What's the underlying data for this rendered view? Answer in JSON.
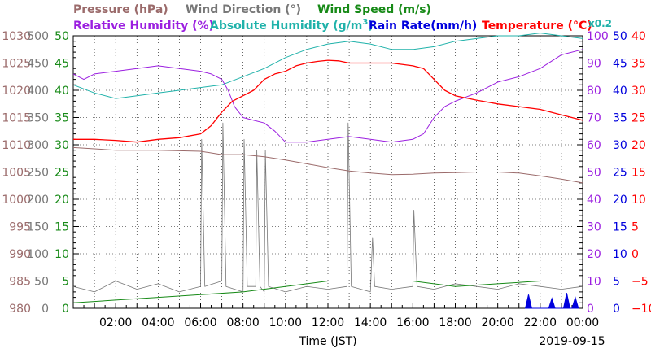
{
  "chart_data": {
    "type": "line",
    "legend_row1": {
      "pressure": "Pressure (hPa)",
      "wind_direction": "Wind Direction (°)",
      "wind_speed": "Wind Speed (m/s)"
    },
    "legend_row2": {
      "relative_humidity": "Relative Humidity (%)",
      "absolute_humidity": "Absolute Humidity (g/m",
      "absolute_humidity_sup": "3",
      "absolute_humidity_close": ")",
      "rain_rate": "Rain Rate(mm/h)",
      "temperature": "Temperature (°C)",
      "scale_note": "x0.2"
    },
    "xlabel": "Time (JST)",
    "date": "2019-09-15",
    "x_ticks": [
      "02:00",
      "04:00",
      "06:00",
      "08:00",
      "10:00",
      "12:00",
      "14:00",
      "16:00",
      "18:00",
      "20:00",
      "22:00",
      "00:00"
    ],
    "x_tick_hours": [
      2,
      4,
      6,
      8,
      10,
      12,
      14,
      16,
      18,
      20,
      22,
      24
    ],
    "xlim": [
      0,
      24
    ],
    "grid": true,
    "colors": {
      "pressure": "#9b6b6b",
      "wind_direction": "#777777",
      "wind_speed": "#178a17",
      "relative_humidity": "#9b1fe0",
      "absolute_humidity": "#20b2aa",
      "rain_rate": "#0000dd",
      "temperature": "#ff0000"
    },
    "axes": {
      "pressure": {
        "ylim": [
          980,
          1030
        ],
        "ticks": [
          "980",
          "985",
          "990",
          "995",
          "1000",
          "1005",
          "1010",
          "1015",
          "1020",
          "1025",
          "1030"
        ]
      },
      "wind_direction": {
        "ylim": [
          0,
          500
        ],
        "ticks": [
          "0",
          "50",
          "100",
          "150",
          "200",
          "250",
          "300",
          "350",
          "400",
          "450",
          "500"
        ]
      },
      "wind_speed": {
        "ylim": [
          0,
          50
        ],
        "ticks": [
          "0",
          "5",
          "10",
          "15",
          "20",
          "25",
          "30",
          "35",
          "40",
          "45",
          "50"
        ]
      },
      "relative_humidity": {
        "ylim": [
          0,
          100
        ],
        "ticks": [
          "0",
          "10",
          "20",
          "30",
          "40",
          "50",
          "60",
          "70",
          "80",
          "90",
          "100"
        ]
      },
      "rain_rate": {
        "ylim": [
          0,
          50
        ],
        "ticks": [
          "0",
          "5",
          "10",
          "15",
          "20",
          "25",
          "30",
          "35",
          "40",
          "45",
          "50"
        ]
      },
      "temperature": {
        "ylim": [
          -10,
          40
        ],
        "ticks": [
          "−10",
          "−5",
          "0",
          "5",
          "10",
          "15",
          "20",
          "25",
          "30",
          "35",
          "40"
        ]
      }
    },
    "series": [
      {
        "name": "Temperature (°C)",
        "axis": "temperature",
        "x": [
          0,
          1,
          2,
          3,
          4,
          5,
          6,
          6.5,
          7,
          7.5,
          8,
          8.5,
          9,
          9.5,
          10,
          10.5,
          11,
          11.5,
          12,
          12.5,
          13,
          14,
          15,
          16,
          16.5,
          17,
          17.5,
          18,
          19,
          20,
          21,
          22,
          23,
          24
        ],
        "y": [
          21,
          21,
          20.8,
          20.5,
          21,
          21.3,
          22,
          23.5,
          26,
          28,
          29,
          30,
          32,
          33,
          33.5,
          34.5,
          35,
          35.3,
          35.5,
          35.4,
          35,
          35,
          35,
          34.5,
          34,
          32,
          30,
          29,
          28.2,
          27.5,
          27,
          26.5,
          25.5,
          24.5
        ]
      },
      {
        "name": "Pressure (hPa)",
        "axis": "pressure",
        "x": [
          0,
          2,
          4,
          6,
          7,
          8,
          9,
          10,
          11,
          12,
          13,
          14,
          15,
          16,
          17,
          18,
          19,
          20,
          21,
          22,
          23,
          24
        ],
        "y": [
          1009.5,
          1009,
          1009,
          1008.8,
          1008.2,
          1008.2,
          1007.8,
          1007.2,
          1006.5,
          1005.8,
          1005.2,
          1004.8,
          1004.5,
          1004.6,
          1004.8,
          1004.9,
          1005,
          1005,
          1004.8,
          1004.3,
          1003.7,
          1003
        ]
      },
      {
        "name": "Relative Humidity (%)",
        "axis": "relative_humidity",
        "x": [
          0,
          0.5,
          1,
          2,
          3,
          4,
          5,
          6,
          6.5,
          7,
          7.3,
          7.6,
          8,
          8.5,
          9,
          9.5,
          10,
          11,
          12,
          13,
          14,
          15,
          16,
          16.5,
          17,
          17.5,
          18,
          19,
          20,
          21,
          22,
          23,
          24
        ],
        "y": [
          86,
          84,
          86,
          87,
          88,
          89,
          88,
          87,
          86,
          84,
          80,
          74,
          70,
          69,
          68,
          65,
          61,
          61,
          62,
          63,
          62,
          61,
          62,
          64,
          70,
          74,
          76,
          79,
          83,
          85,
          88,
          93,
          95
        ]
      },
      {
        "name": "Absolute Humidity (g/m3)",
        "axis": "wind_speed",
        "x": [
          0,
          1,
          2,
          3,
          4,
          5,
          6,
          7,
          8,
          9,
          10,
          11,
          12,
          13,
          14,
          15,
          16,
          17,
          18,
          19,
          20,
          21,
          22,
          23,
          24
        ],
        "y": [
          41,
          39.5,
          38.5,
          39,
          39.5,
          40,
          40.5,
          41,
          42.5,
          44,
          46,
          47.5,
          48.5,
          49,
          48.5,
          47.5,
          47.5,
          48,
          49,
          49.5,
          50,
          50,
          50.5,
          50,
          49.5
        ]
      },
      {
        "name": "Wind Speed (m/s)",
        "axis": "wind_speed",
        "x": [
          0,
          2,
          4,
          6,
          8,
          10,
          12,
          14,
          16,
          18,
          20,
          22,
          24
        ],
        "y": [
          1,
          1.5,
          2,
          2.5,
          3,
          4,
          5,
          5,
          5,
          4,
          4.5,
          5,
          5
        ]
      },
      {
        "name": "Wind Direction (°)",
        "axis": "wind_direction",
        "x": [
          0,
          1,
          2,
          3,
          4,
          5,
          6,
          6.05,
          6.2,
          7,
          7.05,
          7.2,
          8,
          8.05,
          8.2,
          8.6,
          8.65,
          8.8,
          9,
          9.05,
          9.2,
          10,
          11,
          12,
          12.9,
          12.95,
          13.1,
          14,
          14.1,
          14.2,
          15,
          16,
          16.05,
          16.2,
          17,
          18,
          19,
          20,
          21,
          22,
          23,
          24
        ],
        "y": [
          40,
          30,
          50,
          35,
          45,
          30,
          40,
          310,
          40,
          50,
          340,
          40,
          30,
          310,
          40,
          40,
          290,
          40,
          30,
          290,
          40,
          30,
          40,
          35,
          40,
          340,
          40,
          30,
          130,
          40,
          35,
          40,
          180,
          40,
          35,
          45,
          40,
          35,
          45,
          40,
          35,
          40
        ]
      },
      {
        "name": "Rain Rate(mm/h)",
        "axis": "rain_rate",
        "x": [
          21.3,
          21.45,
          21.6,
          22.4,
          22.55,
          22.7,
          23.1,
          23.25,
          23.4,
          23.5,
          23.65,
          23.8
        ],
        "y": [
          0,
          2.5,
          0,
          0,
          1.8,
          0,
          0,
          2.8,
          0,
          0,
          2,
          0
        ]
      }
    ]
  }
}
